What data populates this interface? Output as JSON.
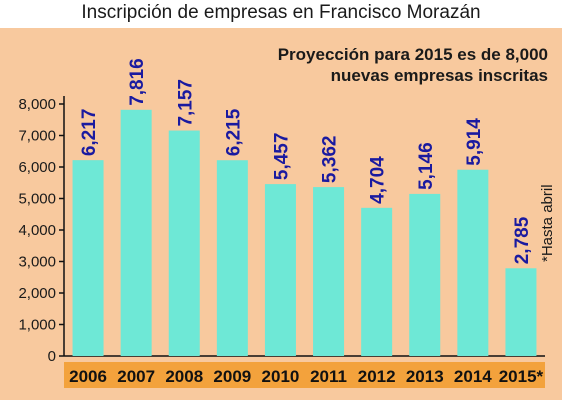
{
  "title": "Inscripción de empresas en Francisco Morazán",
  "projection_note": {
    "line1": "Proyección para 2015 es de 8,000",
    "line2": "nuevas empresas inscritas"
  },
  "footnote": "*Hasta abril",
  "colors": {
    "background": "#f8c99e",
    "bar": "#6ee8d6",
    "value_label": "#1a1aa0",
    "category_band": "#f3a23c"
  },
  "chart_data": {
    "type": "bar",
    "title": "Inscripción de empresas en Francisco Morazán",
    "categories": [
      "2006",
      "2007",
      "2008",
      "2009",
      "2010",
      "2011",
      "2012",
      "2013",
      "2014",
      "2015*"
    ],
    "values": [
      6217,
      7816,
      7157,
      6215,
      5457,
      5362,
      4704,
      5146,
      5914,
      2785
    ],
    "value_labels": [
      "6,217",
      "7,816",
      "7,157",
      "6,215",
      "5,457",
      "5,362",
      "4,704",
      "5,146",
      "5,914",
      "2,785"
    ],
    "yticks": [
      "0",
      "1,000",
      "2,000",
      "3,000",
      "4,000",
      "5,000",
      "6,000",
      "7,000",
      "8,000"
    ],
    "ylim": [
      0,
      8000
    ],
    "xlabel": "",
    "ylabel": "",
    "grid": false,
    "legend": "none"
  }
}
